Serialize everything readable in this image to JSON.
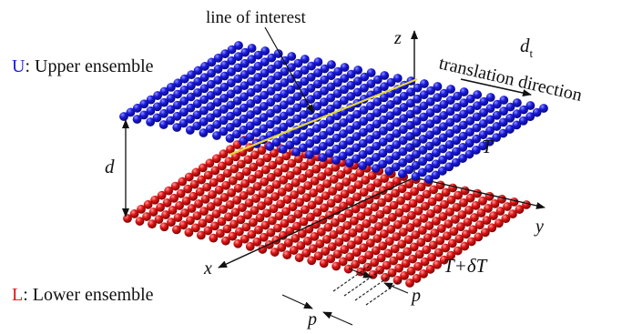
{
  "colors": {
    "upper": "#1a1adf",
    "upper_shade": "#0a0a7a",
    "lower": "#e01515",
    "lower_shade": "#7a0606",
    "line_of_interest": "#e6d93a",
    "ink": "#111111"
  },
  "legend": {
    "upper_letter": "U",
    "upper_text": ": Upper ensemble",
    "lower_letter": "L",
    "lower_text": ": Lower ensemble"
  },
  "labels": {
    "line_of_interest": "line of interest",
    "axis_z": "z",
    "axis_y": "y",
    "axis_x": "x",
    "translation_symbol": "d",
    "translation_subscript": "t",
    "translation_text": "translation direction",
    "separation": "d",
    "upper_temperature": "T",
    "lower_temperature": "T+δT",
    "spacing_left": "p",
    "spacing_right": "p"
  },
  "lattice": {
    "rows": 18,
    "columns": 24
  }
}
